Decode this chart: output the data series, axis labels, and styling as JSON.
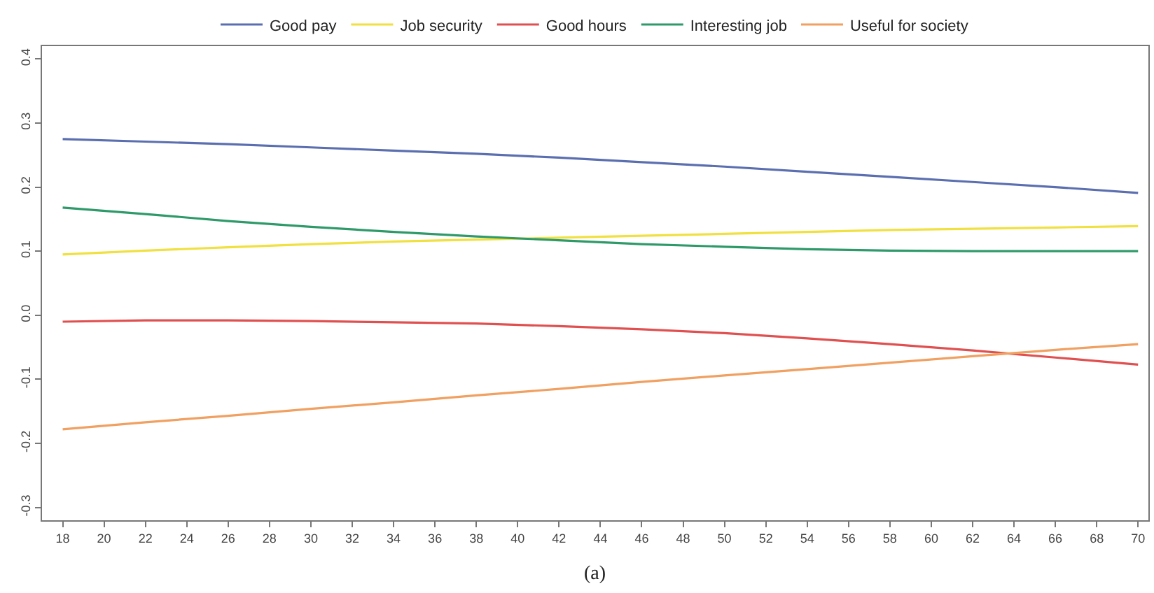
{
  "chart_data": {
    "type": "line",
    "x": [
      18,
      22,
      26,
      30,
      34,
      38,
      42,
      46,
      50,
      54,
      58,
      62,
      66,
      70
    ],
    "series": [
      {
        "name": "Good pay",
        "color": "#5b6fb0",
        "values": [
          0.275,
          0.271,
          0.267,
          0.262,
          0.257,
          0.252,
          0.246,
          0.239,
          0.232,
          0.224,
          0.216,
          0.208,
          0.2,
          0.191
        ]
      },
      {
        "name": "Job security",
        "color": "#f0e040",
        "values": [
          0.095,
          0.101,
          0.106,
          0.111,
          0.115,
          0.118,
          0.121,
          0.124,
          0.127,
          0.13,
          0.133,
          0.135,
          0.137,
          0.139
        ]
      },
      {
        "name": "Good hours",
        "color": "#e05050",
        "values": [
          -0.01,
          -0.008,
          -0.008,
          -0.009,
          -0.011,
          -0.013,
          -0.017,
          -0.022,
          -0.028,
          -0.036,
          -0.045,
          -0.055,
          -0.066,
          -0.077
        ]
      },
      {
        "name": "Interesting job",
        "color": "#2e9a6a",
        "values": [
          0.168,
          0.158,
          0.147,
          0.138,
          0.13,
          0.123,
          0.117,
          0.111,
          0.107,
          0.103,
          0.101,
          0.1,
          0.1,
          0.1
        ]
      },
      {
        "name": "Useful for society",
        "color": "#f0a060",
        "values": [
          -0.178,
          -0.167,
          -0.157,
          -0.146,
          -0.136,
          -0.125,
          -0.115,
          -0.104,
          -0.094,
          -0.084,
          -0.074,
          -0.064,
          -0.054,
          -0.045
        ]
      }
    ],
    "xlim": [
      17,
      70.5
    ],
    "xticks": [
      18,
      20,
      22,
      24,
      26,
      28,
      30,
      32,
      34,
      36,
      38,
      40,
      42,
      44,
      46,
      48,
      50,
      52,
      54,
      56,
      58,
      60,
      62,
      64,
      66,
      68,
      70
    ],
    "ylim": [
      -0.32,
      0.42
    ],
    "yticks": [
      {
        "value": -0.3,
        "label": "-0.3"
      },
      {
        "value": -0.2,
        "label": "-0.2"
      },
      {
        "value": -0.1,
        "label": "-0.1"
      },
      {
        "value": 0,
        "label": "0.0"
      },
      {
        "value": 0.1,
        "label": "0.1"
      },
      {
        "value": 0.2,
        "label": "0.2"
      },
      {
        "value": 0.3,
        "label": "0.3"
      },
      {
        "value": 0.4,
        "label": "0.4"
      }
    ],
    "annotations": [
      "(a)"
    ],
    "legend": "top",
    "grid": false,
    "line_style": "solid",
    "marker": "none"
  }
}
